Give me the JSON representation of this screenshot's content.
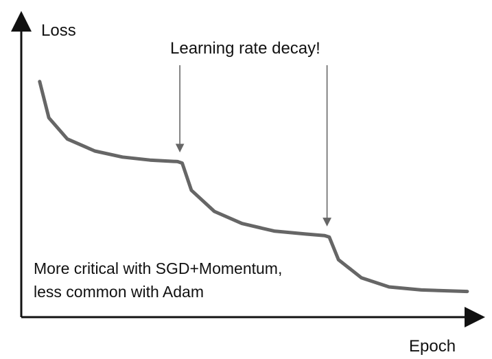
{
  "chart_data": {
    "type": "line",
    "ylabel": "Loss",
    "xlabel": "Epoch",
    "annotation_title": "Learning rate decay!",
    "note_lines": [
      "More critical with SGD+Momentum,",
      "less common with Adam"
    ],
    "curve_color": "#666666",
    "axis_color": "#111111",
    "series": [
      {
        "values": [
          [
            0.04,
            0.78
          ],
          [
            0.06,
            0.66
          ],
          [
            0.1,
            0.59
          ],
          [
            0.16,
            0.55
          ],
          [
            0.22,
            0.53
          ],
          [
            0.28,
            0.52
          ],
          [
            0.34,
            0.515
          ],
          [
            0.35,
            0.51
          ],
          [
            0.37,
            0.42
          ],
          [
            0.42,
            0.35
          ],
          [
            0.48,
            0.31
          ],
          [
            0.55,
            0.285
          ],
          [
            0.62,
            0.275
          ],
          [
            0.66,
            0.27
          ],
          [
            0.67,
            0.265
          ],
          [
            0.69,
            0.19
          ],
          [
            0.74,
            0.13
          ],
          [
            0.8,
            0.1
          ],
          [
            0.87,
            0.09
          ],
          [
            0.97,
            0.085
          ]
        ]
      }
    ],
    "decay_points_x": [
      0.345,
      0.665
    ],
    "xlim": [
      0,
      1
    ],
    "ylim": [
      0,
      1
    ]
  }
}
